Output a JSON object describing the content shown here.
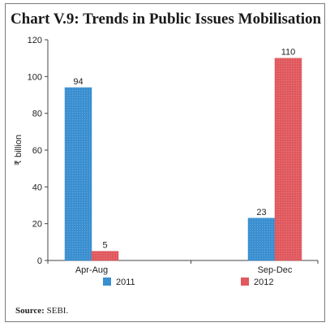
{
  "chart_data": {
    "type": "bar",
    "title": "Chart V.9: Trends in Public Issues Mobilisation",
    "ylabel": "₹ billion",
    "xlabel": "",
    "categories": [
      "Apr-Aug",
      "Sep-Dec"
    ],
    "series": [
      {
        "name": "2011",
        "values": [
          94,
          23
        ],
        "color": "#3a8fd0"
      },
      {
        "name": "2012",
        "values": [
          5,
          110
        ],
        "color": "#e0595e"
      }
    ],
    "ylim": [
      0,
      120
    ],
    "yticks": [
      0,
      20,
      40,
      60,
      80,
      100,
      120
    ],
    "grid": false,
    "legend": "bottom"
  },
  "source": {
    "label": "Source:",
    "text": "SEBI."
  }
}
